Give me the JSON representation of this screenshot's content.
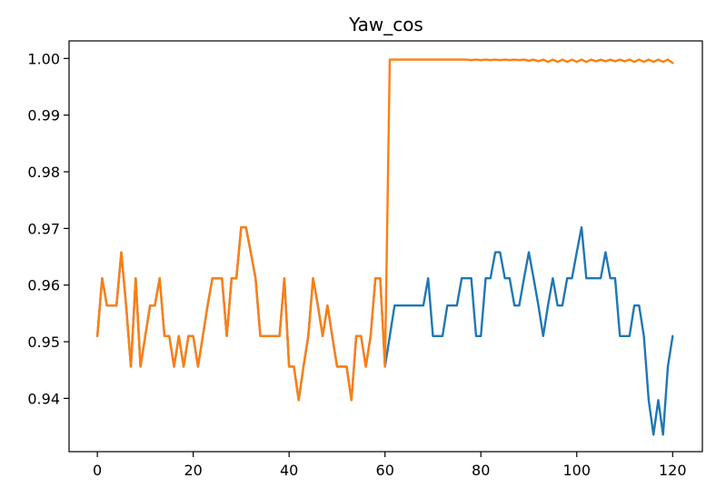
{
  "chart_data": {
    "type": "line",
    "title": "Yaw_cos",
    "xlabel": "",
    "ylabel": "",
    "xlim": [
      -5.9,
      126.2
    ],
    "ylim": [
      0.9306,
      1.0031
    ],
    "xticks": [
      0,
      20,
      40,
      60,
      80,
      100,
      120
    ],
    "yticks": [
      0.94,
      0.95,
      0.96,
      0.97,
      0.98,
      0.99,
      1.0
    ],
    "ytick_labels": [
      "0.94",
      "0.95",
      "0.96",
      "0.97",
      "0.98",
      "0.99",
      "1.00"
    ],
    "grid": false,
    "legend": "none",
    "series": [
      {
        "color": "#1f77b4",
        "x": [
          0,
          1,
          2,
          3,
          4,
          5,
          6,
          7,
          8,
          9,
          10,
          11,
          12,
          13,
          14,
          15,
          16,
          17,
          18,
          19,
          20,
          21,
          22,
          23,
          24,
          25,
          26,
          27,
          28,
          29,
          30,
          31,
          32,
          33,
          34,
          35,
          36,
          37,
          38,
          39,
          40,
          41,
          42,
          43,
          44,
          45,
          46,
          47,
          48,
          49,
          50,
          51,
          52,
          53,
          54,
          55,
          56,
          57,
          58,
          59,
          60,
          61,
          62,
          63,
          64,
          65,
          66,
          67,
          68,
          69,
          70,
          71,
          72,
          73,
          74,
          75,
          76,
          77,
          78,
          79,
          80,
          81,
          82,
          83,
          84,
          85,
          86,
          87,
          88,
          89,
          90,
          91,
          92,
          93,
          94,
          95,
          96,
          97,
          98,
          99,
          100,
          101,
          102,
          103,
          104,
          105,
          106,
          107,
          108,
          109,
          110,
          111,
          112,
          113,
          114,
          115,
          116,
          117,
          118,
          119,
          120
        ],
        "y": [
          0.951,
          0.9612,
          0.9564,
          0.9564,
          0.9564,
          0.9658,
          0.9564,
          0.9456,
          0.9612,
          0.9456,
          0.951,
          0.9564,
          0.9564,
          0.9612,
          0.951,
          0.951,
          0.9456,
          0.951,
          0.9456,
          0.951,
          0.951,
          0.9456,
          0.951,
          0.9564,
          0.9612,
          0.9612,
          0.9612,
          0.951,
          0.9612,
          0.9612,
          0.9702,
          0.9702,
          0.9658,
          0.9612,
          0.951,
          0.951,
          0.951,
          0.951,
          0.951,
          0.9612,
          0.9456,
          0.9456,
          0.9397,
          0.9456,
          0.951,
          0.9612,
          0.9564,
          0.951,
          0.9564,
          0.951,
          0.9456,
          0.9456,
          0.9456,
          0.9397,
          0.951,
          0.951,
          0.9456,
          0.951,
          0.9612,
          0.9612,
          0.9456,
          0.951,
          0.9564,
          0.9564,
          0.9564,
          0.9564,
          0.9564,
          0.9564,
          0.9564,
          0.9612,
          0.951,
          0.951,
          0.951,
          0.9564,
          0.9564,
          0.9564,
          0.9612,
          0.9612,
          0.9612,
          0.951,
          0.951,
          0.9612,
          0.9612,
          0.9658,
          0.9658,
          0.9612,
          0.9612,
          0.9564,
          0.9564,
          0.9612,
          0.9658,
          0.9612,
          0.9564,
          0.951,
          0.9564,
          0.9612,
          0.9564,
          0.9564,
          0.9612,
          0.9612,
          0.9658,
          0.9702,
          0.9612,
          0.9612,
          0.9612,
          0.9612,
          0.9658,
          0.9612,
          0.9612,
          0.951,
          0.951,
          0.951,
          0.9564,
          0.9564,
          0.951,
          0.9397,
          0.9336,
          0.9397,
          0.9336,
          0.9456,
          0.951
        ]
      },
      {
        "color": "#ff7f0e",
        "x": [
          0,
          1,
          2,
          3,
          4,
          5,
          6,
          7,
          8,
          9,
          10,
          11,
          12,
          13,
          14,
          15,
          16,
          17,
          18,
          19,
          20,
          21,
          22,
          23,
          24,
          25,
          26,
          27,
          28,
          29,
          30,
          31,
          32,
          33,
          34,
          35,
          36,
          37,
          38,
          39,
          40,
          41,
          42,
          43,
          44,
          45,
          46,
          47,
          48,
          49,
          50,
          51,
          52,
          53,
          54,
          55,
          56,
          57,
          58,
          59,
          60,
          61,
          62,
          63,
          64,
          65,
          66,
          67,
          68,
          69,
          70,
          71,
          72,
          73,
          74,
          75,
          76,
          77,
          78,
          79,
          80,
          81,
          82,
          83,
          84,
          85,
          86,
          87,
          88,
          89,
          90,
          91,
          92,
          93,
          94,
          95,
          96,
          97,
          98,
          99,
          100,
          101,
          102,
          103,
          104,
          105,
          106,
          107,
          108,
          109,
          110,
          111,
          112,
          113,
          114,
          115,
          116,
          117,
          118,
          119,
          120
        ],
        "y": [
          0.951,
          0.9612,
          0.9564,
          0.9564,
          0.9564,
          0.9658,
          0.9564,
          0.9456,
          0.9612,
          0.9456,
          0.951,
          0.9564,
          0.9564,
          0.9612,
          0.951,
          0.951,
          0.9456,
          0.951,
          0.9456,
          0.951,
          0.951,
          0.9456,
          0.951,
          0.9564,
          0.9612,
          0.9612,
          0.9612,
          0.951,
          0.9612,
          0.9612,
          0.9702,
          0.9702,
          0.9658,
          0.9612,
          0.951,
          0.951,
          0.951,
          0.951,
          0.951,
          0.9612,
          0.9456,
          0.9456,
          0.9397,
          0.9456,
          0.951,
          0.9612,
          0.9564,
          0.951,
          0.9564,
          0.951,
          0.9456,
          0.9456,
          0.9456,
          0.9397,
          0.951,
          0.951,
          0.9456,
          0.951,
          0.9612,
          0.9612,
          0.9456,
          0.9998,
          0.9998,
          0.9998,
          0.9998,
          0.9998,
          0.9998,
          0.9998,
          0.9998,
          0.9998,
          0.9998,
          0.9998,
          0.9998,
          0.9998,
          0.9998,
          0.9998,
          0.9998,
          0.9998,
          0.9997,
          0.9998,
          0.9997,
          0.9998,
          0.9997,
          0.9998,
          0.9997,
          0.9998,
          0.9997,
          0.9998,
          0.9997,
          0.9998,
          0.9996,
          0.9998,
          0.9995,
          0.9998,
          0.9994,
          0.9998,
          0.9994,
          0.9998,
          0.9994,
          0.9998,
          0.9994,
          0.9998,
          0.9994,
          0.9998,
          0.9995,
          0.9998,
          0.9995,
          0.9998,
          0.9995,
          0.9998,
          0.9995,
          0.9998,
          0.9994,
          0.9998,
          0.9994,
          0.9998,
          0.9994,
          0.9998,
          0.9994,
          0.9998,
          0.9992
        ]
      }
    ]
  }
}
